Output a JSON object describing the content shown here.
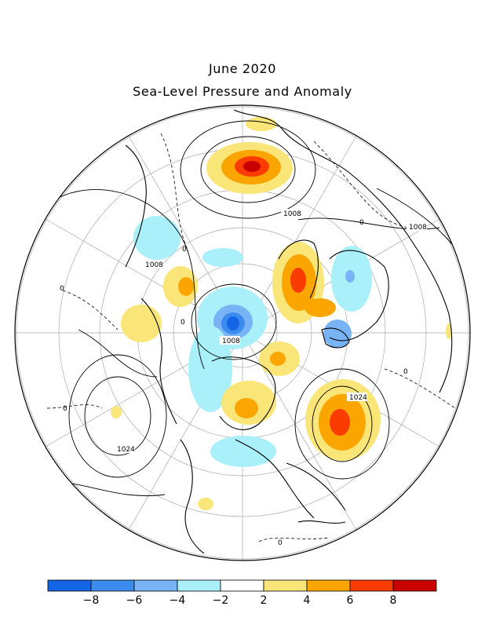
{
  "header": {
    "title": "June 2020",
    "subtitle": "Sea-Level Pressure and Anomaly"
  },
  "map": {
    "projection": "north-polar-stereographic",
    "region": "Northern Hemisphere",
    "contour_labels": [
      "1008",
      "1008",
      "1008",
      "1008",
      "1024",
      "1024",
      "0",
      "0",
      "0",
      "0",
      "0",
      "0",
      "0"
    ]
  },
  "legend": {
    "colors": [
      "#1464e6",
      "#3c8cf0",
      "#78b4f5",
      "#aaf0fa",
      "#ffffff",
      "#fae678",
      "#faa500",
      "#fa3c00",
      "#c80000"
    ],
    "tick_labels": [
      "-8",
      "-6",
      "-4",
      "-2",
      "2",
      "4",
      "6",
      "8"
    ]
  }
}
